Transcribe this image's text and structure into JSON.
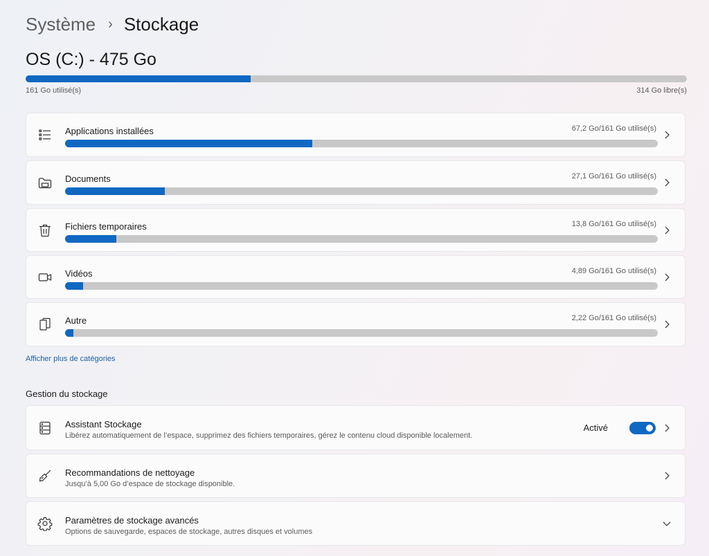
{
  "breadcrumb": {
    "parent": "Système",
    "separator": "›",
    "current": "Stockage"
  },
  "drive": {
    "title": "OS (C:) - 475 Go",
    "used_label": "161 Go utilisé(s)",
    "free_label": "314 Go libre(s)",
    "used_fraction": 0.34
  },
  "categories": [
    {
      "icon": "apps-list-icon",
      "label": "Applications installées",
      "value": "67,2 Go/161 Go utilisé(s)",
      "fraction": 0.417
    },
    {
      "icon": "folder-icon",
      "label": "Documents",
      "value": "27,1 Go/161 Go utilisé(s)",
      "fraction": 0.168
    },
    {
      "icon": "trash-icon",
      "label": "Fichiers temporaires",
      "value": "13,8 Go/161 Go utilisé(s)",
      "fraction": 0.086
    },
    {
      "icon": "video-camera-icon",
      "label": "Vidéos",
      "value": "4,89 Go/161 Go utilisé(s)",
      "fraction": 0.03
    },
    {
      "icon": "other-files-icon",
      "label": "Autre",
      "value": "2,22 Go/161 Go utilisé(s)",
      "fraction": 0.014
    }
  ],
  "more_categories_link": "Afficher plus de catégories",
  "management": {
    "section_title": "Gestion du stockage",
    "items": [
      {
        "icon": "storage-drive-icon",
        "title": "Assistant Stockage",
        "description": "Libérez automatiquement de l’espace, supprimez des fichiers temporaires, gérez le contenu cloud disponible localement.",
        "toggle_label": "Activé",
        "toggle_on": true
      },
      {
        "icon": "broom-icon",
        "title": "Recommandations de nettoyage",
        "description": "Jusqu’à 5,00 Go d’espace de stockage disponible."
      },
      {
        "icon": "gear-icon",
        "title": "Paramètres de stockage avancés",
        "description": "Options de sauvegarde, espaces de stockage, autres disques et volumes"
      }
    ]
  },
  "colors": {
    "accent": "#0f68c2",
    "track": "#c8c8c8",
    "link": "#1f5ea8"
  }
}
